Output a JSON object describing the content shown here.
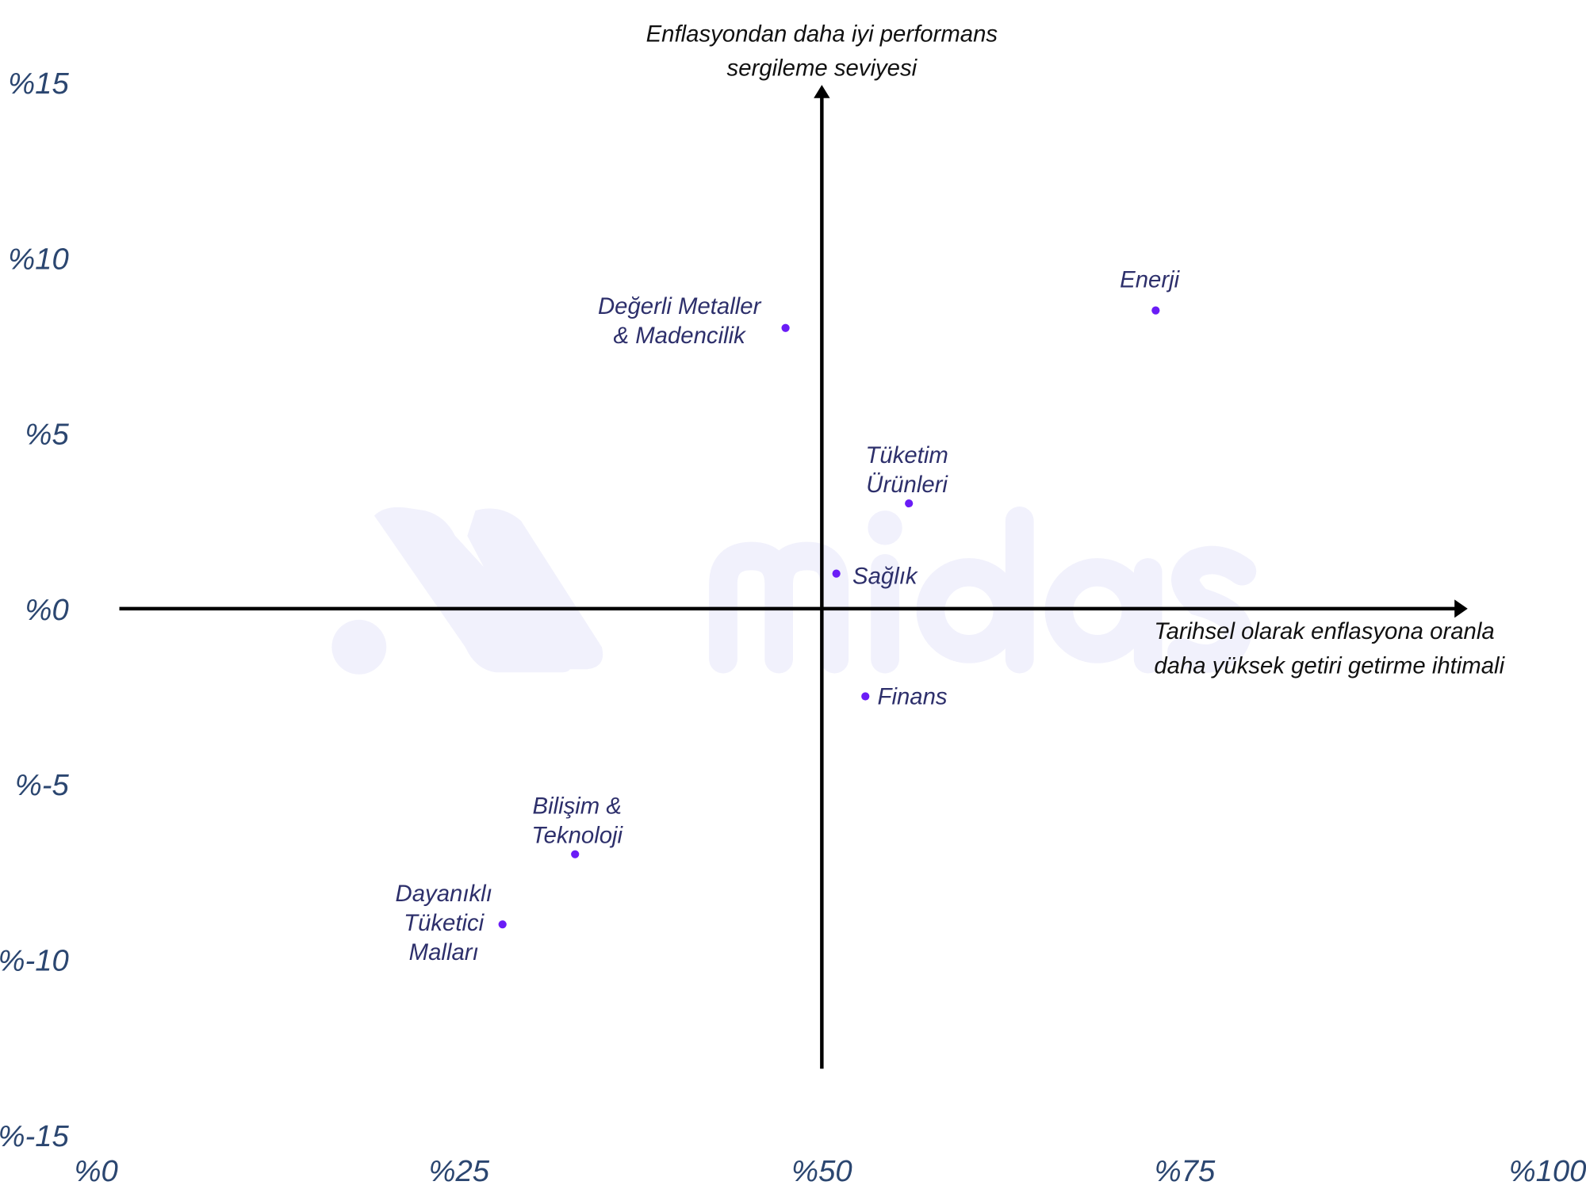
{
  "chart_data": {
    "type": "scatter",
    "title": "",
    "xlabel": "Tarihsel olarak enflasyona oranla daha yüksek getiri getirme ihtimali",
    "xlabel_lines": [
      "Tarihsel olarak enflasyona oranla",
      "daha yüksek getiri getirme ihtimali"
    ],
    "ylabel": "Enflasyondan daha iyi performans sergileme seviyesi",
    "ylabel_lines": [
      "Enflasyondan daha iyi performans",
      "sergileme seviyesi"
    ],
    "xlim": [
      0,
      100
    ],
    "ylim": [
      -15,
      15
    ],
    "x_ticks": [
      {
        "value": 0,
        "label": "%0"
      },
      {
        "value": 25,
        "label": "%25"
      },
      {
        "value": 50,
        "label": "%50"
      },
      {
        "value": 75,
        "label": "%75"
      },
      {
        "value": 100,
        "label": "%100"
      }
    ],
    "y_ticks": [
      {
        "value": 15,
        "label": "%15"
      },
      {
        "value": 10,
        "label": "%10"
      },
      {
        "value": 5,
        "label": "%5"
      },
      {
        "value": 0,
        "label": "%0"
      },
      {
        "value": -5,
        "label": "%-5"
      },
      {
        "value": -10,
        "label": "%-10"
      },
      {
        "value": -15,
        "label": "%-15"
      }
    ],
    "axes_cross": {
      "x": 50,
      "y": 0
    },
    "grid": false,
    "points": [
      {
        "name": "Enerji",
        "lines": [
          "Enerji"
        ],
        "x": 73,
        "y": 8.5
      },
      {
        "name": "Değerli Metaller & Madencilik",
        "lines": [
          "Değerli Metaller",
          "& Madencilik"
        ],
        "x": 47.5,
        "y": 8.0
      },
      {
        "name": "Tüketim Ürünleri",
        "lines": [
          "Tüketim",
          "Ürünleri"
        ],
        "x": 56,
        "y": 3.0
      },
      {
        "name": "Sağlık",
        "lines": [
          "Sağlık"
        ],
        "x": 51,
        "y": 1.0
      },
      {
        "name": "Finans",
        "lines": [
          "Finans"
        ],
        "x": 53,
        "y": -2.5
      },
      {
        "name": "Bilişim & Teknoloji",
        "lines": [
          "Bilişim &",
          "Teknoloji"
        ],
        "x": 33,
        "y": -7.0
      },
      {
        "name": "Dayanıklı Tüketici Malları",
        "lines": [
          "Dayanıklı",
          "Tüketici",
          "Malları"
        ],
        "x": 28,
        "y": -9.0
      }
    ],
    "colors": {
      "point": "#6a1cf6",
      "axis": "#000000",
      "label": "#2d2f6b",
      "tick": "#2b4670"
    }
  },
  "watermark": "midas"
}
